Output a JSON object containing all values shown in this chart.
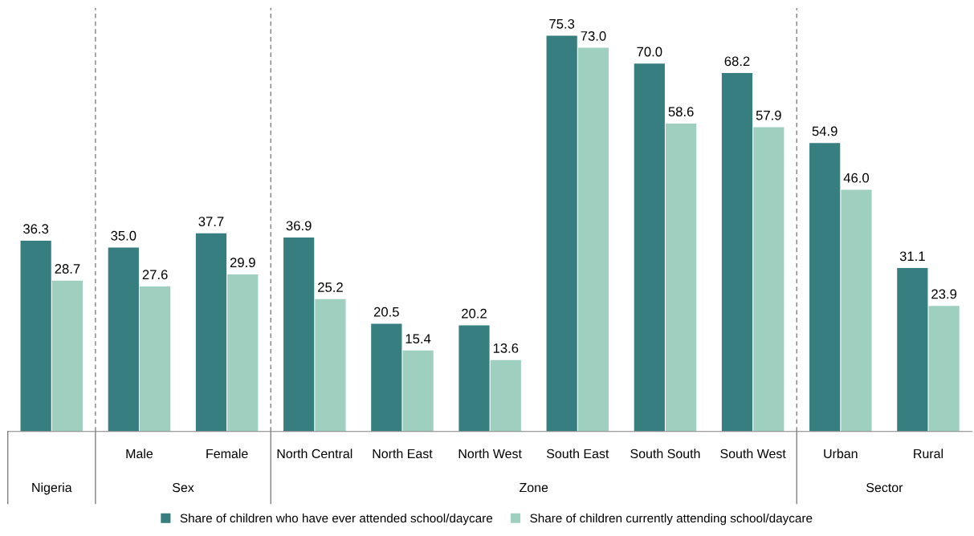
{
  "chart_data": {
    "type": "bar",
    "categories": [
      null,
      "Male",
      "Female",
      "North Central",
      "North East",
      "North West",
      "South East",
      "South South",
      "South West",
      "Urban",
      "Rural"
    ],
    "series": [
      {
        "name": "Share of children who have ever attended school/daycare",
        "color": "#367e7f",
        "values": [
          36.3,
          35.0,
          37.7,
          36.9,
          20.5,
          20.2,
          75.3,
          70.0,
          68.2,
          54.9,
          31.1
        ],
        "value_labels": [
          "36.3",
          "35.0",
          "37.7",
          "36.9",
          "20.5",
          "20.2",
          "75.3",
          "70.0",
          "68.2",
          "54.9",
          "31.1"
        ]
      },
      {
        "name": "Share of children currently attending school/daycare",
        "color": "#9fd0bf",
        "values": [
          28.7,
          27.6,
          29.9,
          25.2,
          15.4,
          13.6,
          73.0,
          58.6,
          57.9,
          46.0,
          23.9
        ],
        "value_labels": [
          "28.7",
          "27.6",
          "29.9",
          "25.2",
          "15.4",
          "13.6",
          "73.0",
          "58.6",
          "57.9",
          "46.0",
          "23.9"
        ]
      }
    ],
    "annotations": [
      "Nigeria",
      "Sex",
      "Zone",
      "Sector"
    ],
    "legend": "bottom"
  }
}
